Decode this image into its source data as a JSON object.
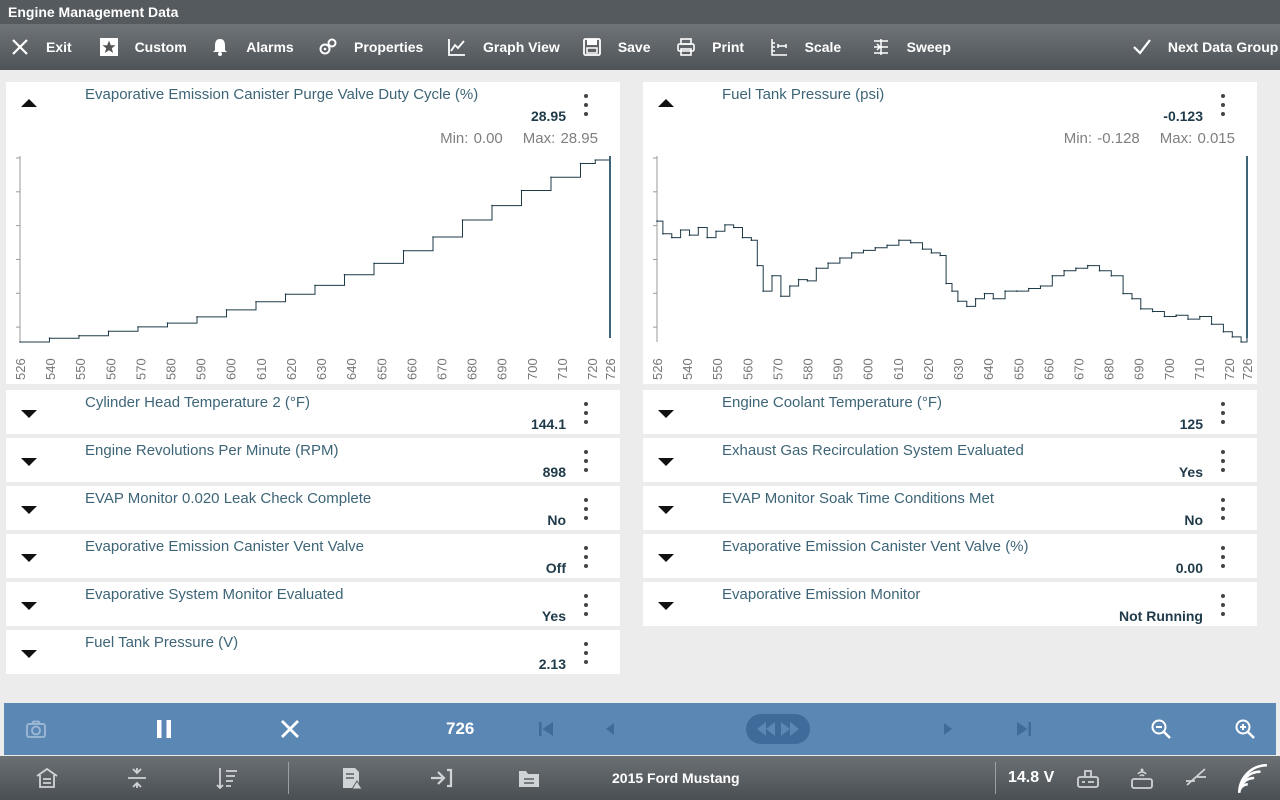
{
  "window": {
    "title": "Engine Management Data"
  },
  "toolbar": {
    "exit": "Exit",
    "custom": "Custom",
    "alarms": "Alarms",
    "properties": "Properties",
    "graph_view": "Graph View",
    "save": "Save",
    "print": "Print",
    "scale": "Scale",
    "sweep": "Sweep",
    "next_data_group": "Next Data Group"
  },
  "graphs": [
    {
      "title": "Evaporative Emission Canister Purge Valve Duty Cycle (%)",
      "value": "28.95",
      "min_label": "Min: 0.00",
      "max_label": "Max: 28.95"
    },
    {
      "title": "Fuel Tank Pressure (psi)",
      "value": "-0.123",
      "min_label": "Min: -0.128",
      "max_label": "Max: 0.015"
    }
  ],
  "chart_data": [
    {
      "type": "line",
      "title": "Evaporative Emission Canister Purge Valve Duty Cycle (%)",
      "tick_labels": [
        "526",
        "540",
        "550",
        "560",
        "570",
        "580",
        "590",
        "600",
        "610",
        "620",
        "630",
        "640",
        "650",
        "660",
        "670",
        "680",
        "690",
        "700",
        "710",
        "720",
        "726"
      ],
      "xlim": [
        526,
        726
      ],
      "ylim": [
        0,
        28.95
      ],
      "grid": false,
      "x": [
        526,
        536,
        546,
        556,
        566,
        576,
        586,
        596,
        606,
        616,
        626,
        636,
        646,
        656,
        666,
        676,
        686,
        696,
        706,
        716,
        721,
        726
      ],
      "y": [
        0.0,
        0.6,
        1.0,
        1.7,
        2.4,
        3.0,
        4.0,
        5.1,
        6.4,
        7.6,
        9.0,
        10.7,
        12.5,
        14.5,
        16.7,
        19.4,
        21.7,
        24.1,
        26.2,
        28.4,
        28.95,
        28.95
      ]
    },
    {
      "type": "line",
      "title": "Fuel Tank Pressure (psi)",
      "tick_labels": [
        "526",
        "540",
        "550",
        "560",
        "570",
        "580",
        "590",
        "600",
        "610",
        "620",
        "630",
        "640",
        "650",
        "660",
        "670",
        "680",
        "690",
        "700",
        "710",
        "720",
        "726"
      ],
      "xlim": [
        526,
        726
      ],
      "ylim": [
        -0.128,
        0.015
      ],
      "grid": false,
      "x": [
        526,
        528,
        531,
        534,
        537,
        540,
        543,
        546,
        549,
        552,
        555,
        558,
        560,
        562,
        565,
        568,
        571,
        574,
        577,
        580,
        584,
        588,
        592,
        596,
        600,
        604,
        608,
        612,
        616,
        619,
        622,
        624,
        626,
        628,
        631,
        634,
        637,
        640,
        644,
        648,
        652,
        656,
        660,
        664,
        668,
        672,
        676,
        680,
        684,
        687,
        690,
        694,
        698,
        702,
        706,
        710,
        714,
        718,
        721,
        724,
        726
      ],
      "y": [
        -0.033,
        -0.043,
        -0.046,
        -0.04,
        -0.044,
        -0.038,
        -0.046,
        -0.041,
        -0.036,
        -0.038,
        -0.046,
        -0.048,
        -0.068,
        -0.088,
        -0.076,
        -0.092,
        -0.084,
        -0.079,
        -0.08,
        -0.07,
        -0.066,
        -0.062,
        -0.058,
        -0.056,
        -0.054,
        -0.052,
        -0.048,
        -0.05,
        -0.055,
        -0.058,
        -0.06,
        -0.082,
        -0.088,
        -0.096,
        -0.1,
        -0.094,
        -0.09,
        -0.094,
        -0.088,
        -0.088,
        -0.086,
        -0.084,
        -0.076,
        -0.072,
        -0.07,
        -0.068,
        -0.072,
        -0.076,
        -0.09,
        -0.094,
        -0.102,
        -0.104,
        -0.108,
        -0.107,
        -0.11,
        -0.108,
        -0.114,
        -0.12,
        -0.124,
        -0.128,
        -0.123
      ]
    }
  ],
  "rows_left": [
    {
      "label": "Cylinder Head Temperature 2 (°F)",
      "value": "144.1"
    },
    {
      "label": "Engine Revolutions Per Minute (RPM)",
      "value": "898"
    },
    {
      "label": "EVAP Monitor 0.020 Leak Check Complete",
      "value": "No"
    },
    {
      "label": "Evaporative Emission Canister Vent Valve",
      "value": "Off"
    },
    {
      "label": "Evaporative System Monitor Evaluated",
      "value": "Yes"
    },
    {
      "label": "Fuel Tank Pressure (V)",
      "value": "2.13"
    }
  ],
  "rows_right": [
    {
      "label": "Engine Coolant Temperature (°F)",
      "value": "125"
    },
    {
      "label": "Exhaust Gas Recirculation System Evaluated",
      "value": "Yes"
    },
    {
      "label": "EVAP Monitor Soak Time Conditions Met",
      "value": "No"
    },
    {
      "label": "Evaporative Emission Canister Vent Valve (%)",
      "value": "0.00"
    },
    {
      "label": "Evaporative Emission Monitor",
      "value": "Not Running"
    }
  ],
  "playback": {
    "frame": "726"
  },
  "status": {
    "vehicle": "2015 Ford Mustang",
    "voltage": "14.8 V"
  },
  "colors": {
    "playbar": "#5b87b4",
    "toolbar": "#5a5f63",
    "trace": "#1f3a48",
    "cursor": "#3d6577",
    "label": "#3d6577"
  }
}
